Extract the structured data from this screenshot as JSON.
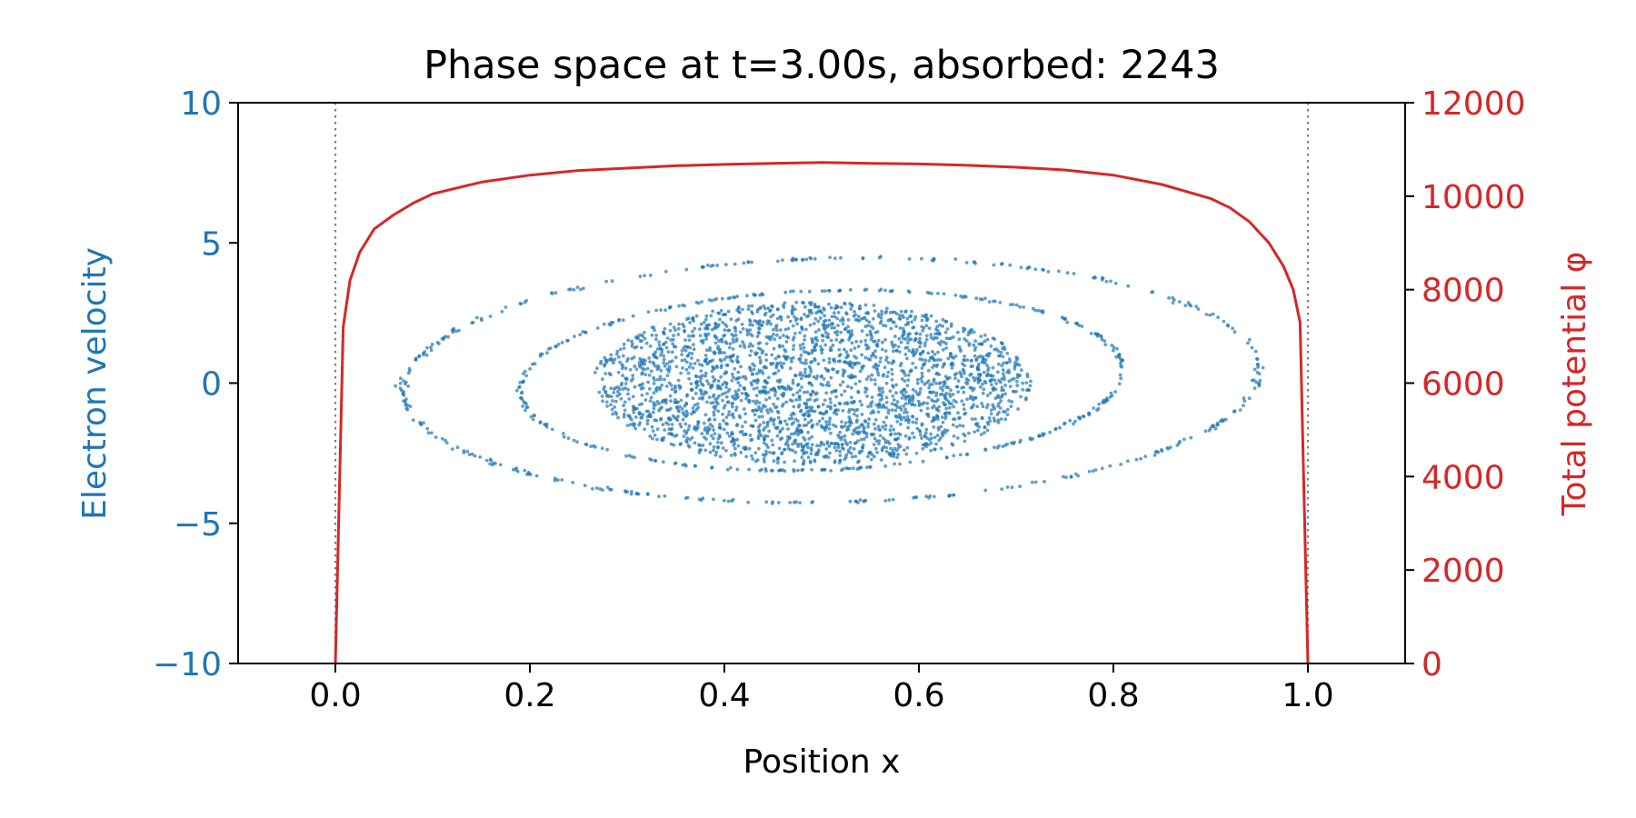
{
  "chart_data": {
    "type": "scatter",
    "title": "Phase space at t=3.00s, absorbed: 2243",
    "xlabel": "Position x",
    "ylabel": "Electron velocity",
    "y2label": "Total potential φ",
    "xlim": [
      -0.1,
      1.1
    ],
    "ylim": [
      -10,
      10
    ],
    "y2lim": [
      0,
      12000
    ],
    "xticks": [
      0.0,
      0.2,
      0.4,
      0.6,
      0.8,
      1.0
    ],
    "xtick_labels": [
      "0.0",
      "0.2",
      "0.4",
      "0.6",
      "0.8",
      "1.0"
    ],
    "yticks": [
      -10,
      -5,
      0,
      5,
      10
    ],
    "ytick_labels": [
      "−10",
      "−5",
      "0",
      "5",
      "10"
    ],
    "y2ticks": [
      0,
      2000,
      4000,
      6000,
      8000,
      10000,
      12000
    ],
    "y2tick_labels": [
      "0",
      "2000",
      "4000",
      "6000",
      "8000",
      "10000",
      "12000"
    ],
    "vlines": [
      0.0,
      1.0
    ],
    "grid": false,
    "colors": {
      "velocity": "#1f77b4",
      "potential": "#d62728",
      "boundary": "#808080",
      "axes": "#000000"
    },
    "scatter_groups": [
      {
        "cx": 0.49,
        "cy": 0.0,
        "rx": 0.225,
        "ry": 2.9,
        "n": 2600,
        "filled": true
      },
      {
        "cx": 0.5,
        "cy": 0.1,
        "rx": 0.31,
        "ry": 3.2,
        "n": 320,
        "filled": false
      },
      {
        "cx": 0.51,
        "cy": 0.1,
        "rx": 0.44,
        "ry": 4.35,
        "n": 360,
        "filled": false
      }
    ],
    "series": [
      {
        "axis": "y2",
        "type": "line",
        "x": [
          0.0,
          0.008,
          0.015,
          0.025,
          0.04,
          0.06,
          0.08,
          0.1,
          0.15,
          0.2,
          0.25,
          0.3,
          0.35,
          0.4,
          0.45,
          0.5,
          0.55,
          0.6,
          0.65,
          0.7,
          0.75,
          0.8,
          0.85,
          0.9,
          0.92,
          0.94,
          0.96,
          0.975,
          0.985,
          0.992,
          1.0
        ],
        "y": [
          0,
          7200,
          8200,
          8800,
          9300,
          9600,
          9850,
          10050,
          10300,
          10450,
          10550,
          10600,
          10650,
          10680,
          10700,
          10720,
          10700,
          10690,
          10660,
          10620,
          10560,
          10450,
          10250,
          9950,
          9750,
          9450,
          9000,
          8500,
          8000,
          7300,
          0
        ]
      }
    ]
  }
}
